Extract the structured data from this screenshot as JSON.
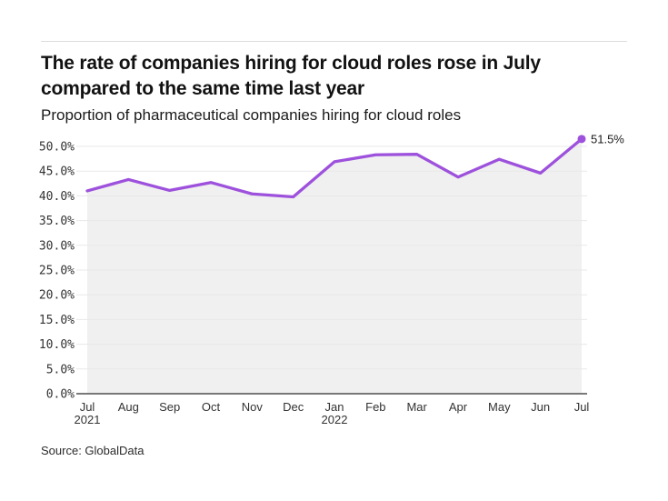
{
  "header": {
    "title": "The rate of companies hiring for cloud roles rose in July compared to the same time last year",
    "subtitle": "Proportion of pharmaceutical companies hiring for cloud roles"
  },
  "footer": {
    "source": "Source: GlobalData"
  },
  "chart_data": {
    "type": "line",
    "title": "The rate of companies hiring for cloud roles rose in July compared to the same time last year",
    "subtitle": "Proportion of pharmaceutical companies hiring for cloud roles",
    "categories": [
      "Jul",
      "Aug",
      "Sep",
      "Oct",
      "Nov",
      "Dec",
      "Jan",
      "Feb",
      "Mar",
      "Apr",
      "May",
      "Jun",
      "Jul"
    ],
    "year_labels": [
      {
        "index": 0,
        "label": "2021"
      },
      {
        "index": 6,
        "label": "2022"
      }
    ],
    "series": [
      {
        "name": "Proportion of pharmaceutical companies hiring for cloud roles",
        "values": [
          41.0,
          43.3,
          41.1,
          42.7,
          40.4,
          39.8,
          46.9,
          48.3,
          48.4,
          43.8,
          47.4,
          44.6,
          51.5
        ]
      }
    ],
    "end_label": "51.5%",
    "ylim": [
      0,
      50
    ],
    "ytick_interval": 5,
    "ytick_labels": [
      "0.0%",
      "5.0%",
      "10.0%",
      "15.0%",
      "20.0%",
      "25.0%",
      "30.0%",
      "35.0%",
      "40.0%",
      "45.0%",
      "50.0%"
    ],
    "grid": true,
    "legend": "none",
    "colors": {
      "line": "#9d51dc",
      "marker": "#9d51dc",
      "area_fill": "#f0f0f0",
      "gridline": "#e8e8e8",
      "axis": "#4d4d4d",
      "tick_text": "#333333"
    }
  }
}
